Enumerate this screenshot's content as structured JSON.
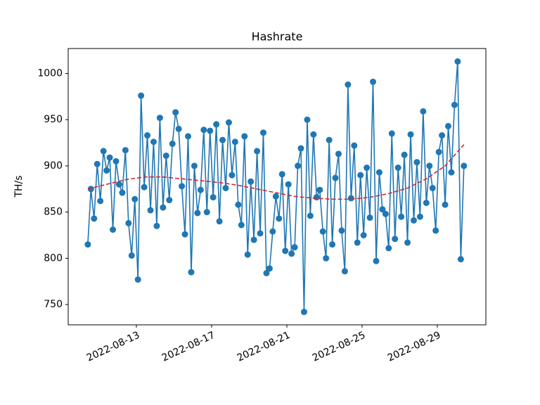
{
  "chart_data": {
    "type": "line",
    "title": "Hashrate",
    "y_label": "TH/s",
    "x": [
      "2022-08-10T10:00",
      "2022-08-10T14:00",
      "2022-08-10T18:00",
      "2022-08-10T22:00",
      "2022-08-11T02:00",
      "2022-08-11T06:00",
      "2022-08-11T10:00",
      "2022-08-11T14:00",
      "2022-08-11T18:00",
      "2022-08-11T22:00",
      "2022-08-12T02:00",
      "2022-08-12T06:00",
      "2022-08-12T10:00",
      "2022-08-12T14:00",
      "2022-08-12T18:00",
      "2022-08-12T22:00",
      "2022-08-13T02:00",
      "2022-08-13T06:00",
      "2022-08-13T10:00",
      "2022-08-13T14:00",
      "2022-08-13T18:00",
      "2022-08-13T22:00",
      "2022-08-14T02:00",
      "2022-08-14T06:00",
      "2022-08-14T10:00",
      "2022-08-14T14:00",
      "2022-08-14T18:00",
      "2022-08-14T22:00",
      "2022-08-15T02:00",
      "2022-08-15T06:00",
      "2022-08-15T10:00",
      "2022-08-15T14:00",
      "2022-08-15T18:00",
      "2022-08-15T22:00",
      "2022-08-16T02:00",
      "2022-08-16T06:00",
      "2022-08-16T10:00",
      "2022-08-16T14:00",
      "2022-08-16T18:00",
      "2022-08-16T22:00",
      "2022-08-17T02:00",
      "2022-08-17T06:00",
      "2022-08-17T10:00",
      "2022-08-17T14:00",
      "2022-08-17T18:00",
      "2022-08-17T22:00",
      "2022-08-18T02:00",
      "2022-08-18T06:00",
      "2022-08-18T10:00",
      "2022-08-18T14:00",
      "2022-08-18T18:00",
      "2022-08-18T22:00",
      "2022-08-19T02:00",
      "2022-08-19T06:00",
      "2022-08-19T10:00",
      "2022-08-19T14:00",
      "2022-08-19T18:00",
      "2022-08-19T22:00",
      "2022-08-20T02:00",
      "2022-08-20T06:00",
      "2022-08-20T10:00",
      "2022-08-20T14:00",
      "2022-08-20T18:00",
      "2022-08-20T22:00",
      "2022-08-21T02:00",
      "2022-08-21T06:00",
      "2022-08-21T10:00",
      "2022-08-21T14:00",
      "2022-08-21T18:00",
      "2022-08-21T22:00",
      "2022-08-22T02:00",
      "2022-08-22T06:00",
      "2022-08-22T10:00",
      "2022-08-22T14:00",
      "2022-08-22T18:00",
      "2022-08-22T22:00",
      "2022-08-23T02:00",
      "2022-08-23T06:00",
      "2022-08-23T10:00",
      "2022-08-23T14:00",
      "2022-08-23T18:00",
      "2022-08-23T22:00",
      "2022-08-24T02:00",
      "2022-08-24T06:00",
      "2022-08-24T10:00",
      "2022-08-24T14:00",
      "2022-08-24T18:00",
      "2022-08-24T22:00",
      "2022-08-25T02:00",
      "2022-08-25T06:00",
      "2022-08-25T10:00",
      "2022-08-25T14:00",
      "2022-08-25T18:00",
      "2022-08-25T22:00",
      "2022-08-26T02:00",
      "2022-08-26T06:00",
      "2022-08-26T10:00",
      "2022-08-26T14:00",
      "2022-08-26T18:00",
      "2022-08-26T22:00",
      "2022-08-27T02:00",
      "2022-08-27T06:00",
      "2022-08-27T10:00",
      "2022-08-27T14:00",
      "2022-08-27T18:00",
      "2022-08-27T22:00",
      "2022-08-28T02:00",
      "2022-08-28T06:00",
      "2022-08-28T10:00",
      "2022-08-28T14:00",
      "2022-08-28T18:00",
      "2022-08-28T22:00",
      "2022-08-29T02:00",
      "2022-08-29T06:00",
      "2022-08-29T10:00",
      "2022-08-29T14:00",
      "2022-08-29T18:00",
      "2022-08-29T22:00",
      "2022-08-30T02:00",
      "2022-08-30T06:00",
      "2022-08-30T10:00"
    ],
    "series": [
      {
        "color": "#1f77b4",
        "marker": true,
        "dashed": false,
        "values": [
          815,
          875,
          843,
          902,
          862,
          916,
          895,
          909,
          831,
          905,
          880,
          871,
          917,
          838,
          803,
          864,
          777,
          976,
          877,
          933,
          852,
          926,
          835,
          952,
          855,
          911,
          863,
          924,
          958,
          940,
          878,
          826,
          932,
          785,
          900,
          849,
          874,
          939,
          850,
          938,
          866,
          945,
          840,
          928,
          876,
          947,
          890,
          926,
          858,
          836,
          932,
          804,
          883,
          820,
          916,
          827,
          936,
          784,
          789,
          829,
          867,
          843,
          891,
          808,
          880,
          805,
          812,
          900,
          919,
          742,
          950,
          846,
          934,
          866,
          874,
          829,
          800,
          928,
          815,
          887,
          913,
          830,
          786,
          988,
          865,
          922,
          817,
          890,
          825,
          898,
          844,
          991,
          797,
          893,
          853,
          848,
          811,
          935,
          821,
          898,
          845,
          912,
          817,
          934,
          841,
          904,
          845,
          959,
          860,
          900,
          876,
          830,
          915,
          933,
          858,
          943,
          893,
          966,
          1013,
          799,
          900
        ]
      },
      {
        "color": "#d62728",
        "marker": false,
        "dashed": true,
        "x": [
          "2022-08-10T10:00",
          "2022-08-11T10:00",
          "2022-08-12T10:00",
          "2022-08-13T10:00",
          "2022-08-14T10:00",
          "2022-08-15T10:00",
          "2022-08-16T10:00",
          "2022-08-17T10:00",
          "2022-08-18T10:00",
          "2022-08-19T10:00",
          "2022-08-20T10:00",
          "2022-08-21T10:00",
          "2022-08-22T10:00",
          "2022-08-23T10:00",
          "2022-08-24T10:00",
          "2022-08-25T10:00",
          "2022-08-26T10:00",
          "2022-08-27T10:00",
          "2022-08-28T10:00",
          "2022-08-29T10:00",
          "2022-08-30T10:00"
        ],
        "values": [
          875,
          880,
          885,
          888,
          888,
          886,
          884,
          882,
          879,
          875,
          871,
          867,
          865,
          864,
          864,
          866,
          870,
          876,
          886,
          900,
          923
        ]
      }
    ],
    "xlim": [
      "2022-08-09T09:00",
      "2022-08-31T14:00"
    ],
    "xticks": [
      "2022-08-13",
      "2022-08-17",
      "2022-08-21",
      "2022-08-25",
      "2022-08-29"
    ],
    "ylim": [
      728,
      1027
    ],
    "yticks": [
      750,
      800,
      850,
      900,
      950,
      1000
    ],
    "grid": false
  }
}
